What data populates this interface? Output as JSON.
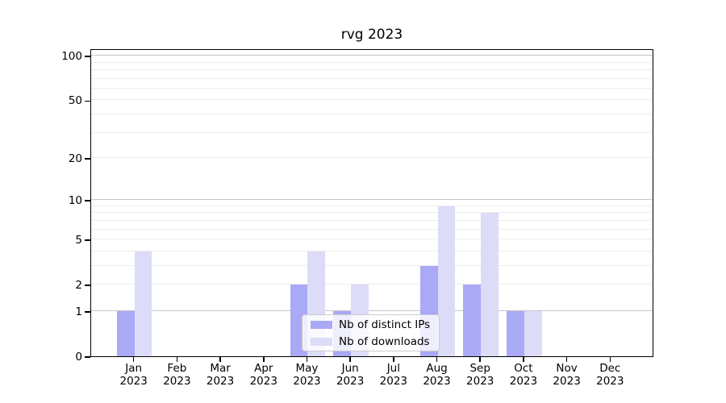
{
  "title": "rvg 2023",
  "chart_data": {
    "type": "bar",
    "title": "rvg 2023",
    "categories": [
      "Jan\n2023",
      "Feb\n2023",
      "Mar\n2023",
      "Apr\n2023",
      "May\n2023",
      "Jun\n2023",
      "Jul\n2023",
      "Aug\n2023",
      "Sep\n2023",
      "Oct\n2023",
      "Nov\n2023",
      "Dec\n2023"
    ],
    "series": [
      {
        "name": "Nb of distinct IPs",
        "color": "#a9a9f5",
        "values": [
          1,
          0,
          0,
          0,
          2,
          1,
          0,
          3,
          2,
          1,
          0,
          0
        ]
      },
      {
        "name": "Nb of downloads",
        "color": "#dcdcf8",
        "values": [
          4,
          0,
          0,
          0,
          4,
          2,
          0,
          9,
          8,
          1,
          0,
          0
        ]
      }
    ],
    "xlabel": "",
    "ylabel": "",
    "y_scale": "log1p",
    "ylim": [
      0,
      112
    ],
    "y_ticks": [
      0,
      1,
      2,
      5,
      10,
      20,
      50,
      100
    ],
    "y_tick_labels": [
      "0",
      "1",
      "2",
      "5",
      "10",
      "20",
      "50",
      "100"
    ],
    "major_gridlines": [
      1,
      10,
      100
    ],
    "minor_gridlines": [
      2,
      3,
      4,
      5,
      6,
      7,
      8,
      9,
      20,
      30,
      40,
      50,
      60,
      70,
      80,
      90
    ],
    "grid": true,
    "legend_position": "lower center"
  },
  "colors": {
    "background": "#ffffff",
    "axis": "#000000",
    "grid_major": "#c6c6c6",
    "grid_minor": "#ececec",
    "legend_border": "#cccccc",
    "bar_distinct_ips": "#a9a9f5",
    "bar_downloads": "#dcdcf8"
  }
}
